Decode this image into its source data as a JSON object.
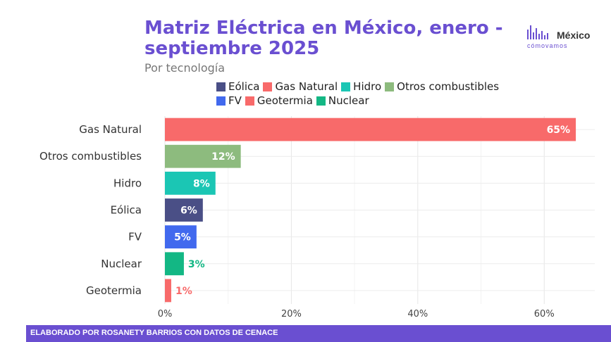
{
  "header": {
    "title": "Matriz Eléctrica en México, enero - septiembre 2025",
    "subtitle": "Por tecnología"
  },
  "logo": {
    "name": "México",
    "tagline": "cómovamos"
  },
  "legend": {
    "row1": [
      {
        "label": "Eólica",
        "color": "#4a4f86"
      },
      {
        "label": "Gas Natural",
        "color": "#f86a6a"
      },
      {
        "label": "Hidro",
        "color": "#1bc6b4"
      },
      {
        "label": "Otros combustibles",
        "color": "#8dbb7e"
      }
    ],
    "row2": [
      {
        "label": "FV",
        "color": "#4169ee"
      },
      {
        "label": "Geotermia",
        "color": "#f86a6a"
      },
      {
        "label": "Nuclear",
        "color": "#13b784"
      }
    ]
  },
  "chart_data": {
    "type": "bar",
    "orientation": "horizontal",
    "categories": [
      "Gas Natural",
      "Otros combustibles",
      "Hidro",
      "Eólica",
      "FV",
      "Nuclear",
      "Geotermia"
    ],
    "values": [
      65,
      12,
      8,
      6,
      5,
      3,
      1
    ],
    "value_labels": [
      "65%",
      "12%",
      "8%",
      "6%",
      "5%",
      "3%",
      "1%"
    ],
    "colors": [
      "#f86a6a",
      "#8dbb7e",
      "#1bc6b4",
      "#4a4f86",
      "#4169ee",
      "#13b784",
      "#f86a6a"
    ],
    "xlim": [
      0,
      68
    ],
    "xticks": [
      0,
      20,
      40,
      60
    ],
    "xtick_labels": [
      "0%",
      "20%",
      "40%",
      "60%"
    ],
    "grid": true,
    "xlabel": "",
    "ylabel": ""
  },
  "footer": {
    "credit": "ELABORADO POR ROSANETY BARRIOS CON DATOS DE CENACE"
  }
}
